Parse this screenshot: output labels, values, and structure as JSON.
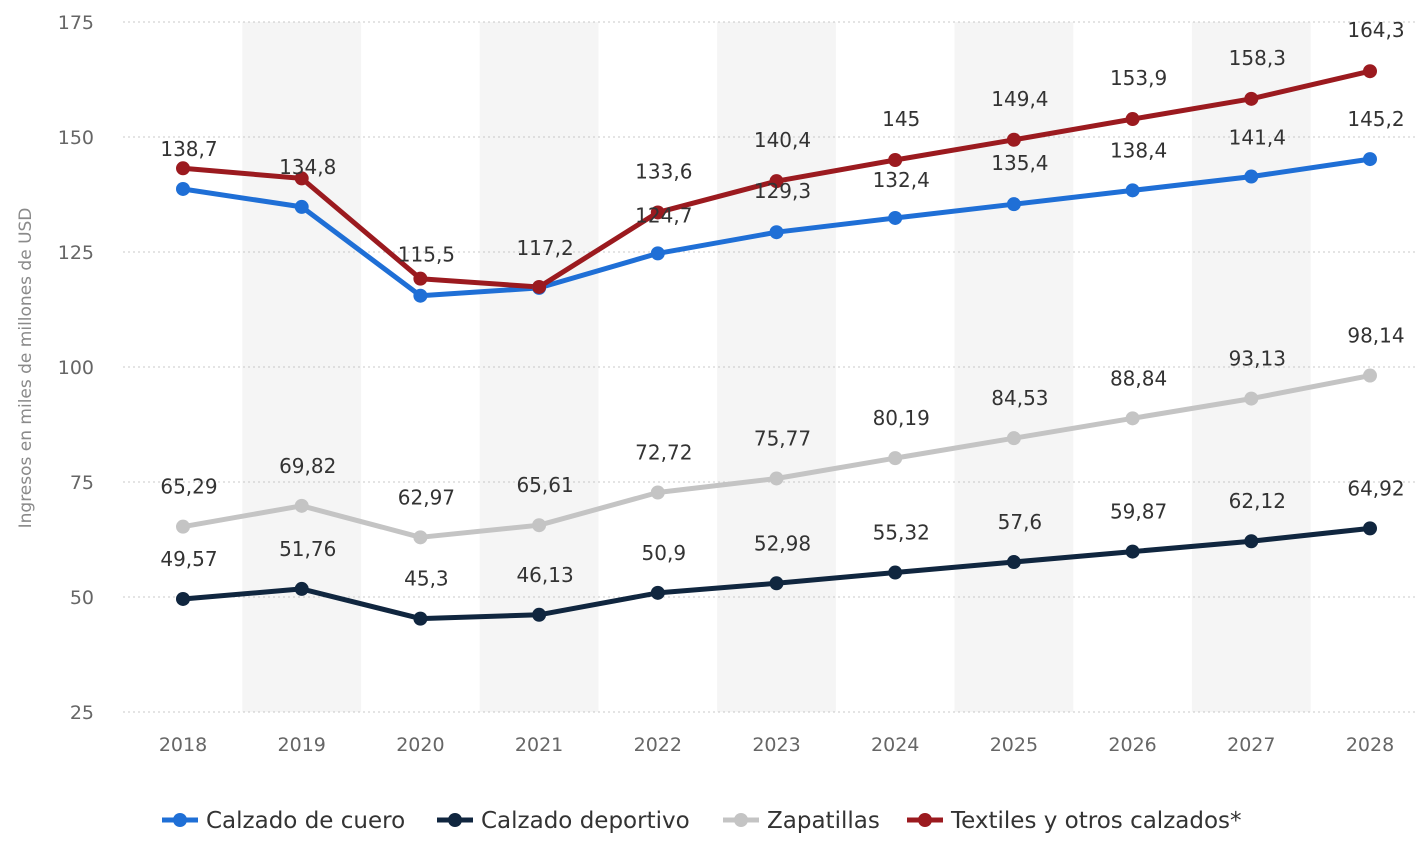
{
  "chart_data": {
    "type": "line",
    "title": "",
    "xlabel": "",
    "ylabel": "Ingresos en miles de millones de USD",
    "ylim": [
      25,
      175
    ],
    "yticks": [
      "25",
      "50",
      "75",
      "100",
      "125",
      "150",
      "175"
    ],
    "categories": [
      "2018",
      "2019",
      "2020",
      "2021",
      "2022",
      "2023",
      "2024",
      "2025",
      "2026",
      "2027",
      "2028"
    ],
    "grid": true,
    "legend_position": "bottom",
    "series": [
      {
        "name": "Calzado de cuero",
        "color": "#1f6fd6",
        "values": [
          138.7,
          134.8,
          115.5,
          117.2,
          124.7,
          129.3,
          132.4,
          135.4,
          138.4,
          141.4,
          145.2
        ],
        "labels": [
          "138,7",
          "134,8",
          "115,5",
          "117,2",
          "124,7",
          "129,3",
          "132,4",
          "135,4",
          "138,4",
          "141,4",
          "145,2"
        ]
      },
      {
        "name": "Calzado deportivo",
        "color": "#10263f",
        "values": [
          49.57,
          51.76,
          45.3,
          46.13,
          50.9,
          52.98,
          55.32,
          57.6,
          59.87,
          62.12,
          64.92
        ],
        "labels": [
          "49,57",
          "51,76",
          "45,3",
          "46,13",
          "50,9",
          "52,98",
          "55,32",
          "57,6",
          "59,87",
          "62,12",
          "64,92"
        ]
      },
      {
        "name": "Zapatillas",
        "color": "#c4c4c4",
        "values": [
          65.29,
          69.82,
          62.97,
          65.61,
          72.72,
          75.77,
          80.19,
          84.53,
          88.84,
          93.13,
          98.14
        ],
        "labels": [
          "65,29",
          "69,82",
          "62,97",
          "65,61",
          "72,72",
          "75,77",
          "80,19",
          "84,53",
          "88,84",
          "93,13",
          "98,14"
        ]
      },
      {
        "name": "Textiles y otros calzados*",
        "color": "#9b1a1f",
        "values": [
          143.2,
          141.0,
          119.2,
          117.4,
          133.6,
          140.4,
          145,
          149.4,
          153.9,
          158.3,
          164.3
        ],
        "labels": [
          "",
          "",
          "",
          "",
          "133,6",
          "140,4",
          "145",
          "149,4",
          "153,9",
          "158,3",
          "164,3"
        ]
      }
    ]
  }
}
